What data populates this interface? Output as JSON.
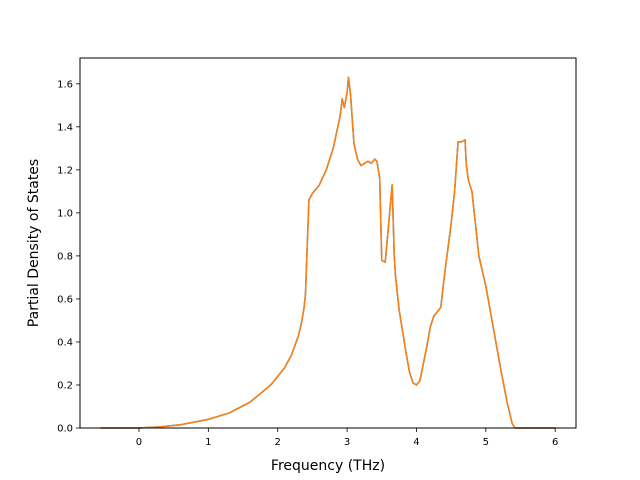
{
  "chart_data": {
    "type": "line",
    "title": "",
    "xlabel": "Frequency (THz)",
    "ylabel": "Partial Density of States",
    "xlim": [
      -0.85,
      6.3
    ],
    "ylim": [
      0.0,
      1.72
    ],
    "xticks": [
      0,
      1,
      2,
      3,
      4,
      5,
      6
    ],
    "yticks": [
      0.0,
      0.2,
      0.4,
      0.6,
      0.8,
      1.0,
      1.2,
      1.4,
      1.6
    ],
    "xtick_labels": [
      "0",
      "1",
      "2",
      "3",
      "4",
      "5",
      "6"
    ],
    "ytick_labels": [
      "0.0",
      "0.2",
      "0.4",
      "0.6",
      "0.8",
      "1.0",
      "1.2",
      "1.4",
      "1.6"
    ],
    "grid": false,
    "legend": "none",
    "series": [
      {
        "color": "#1f77b4",
        "x": [
          -0.55,
          0.0,
          0.3,
          0.6,
          1.0,
          1.3,
          1.6,
          1.9,
          2.1,
          2.2,
          2.3,
          2.35,
          2.38,
          2.4,
          2.45,
          2.5,
          2.6,
          2.7,
          2.8,
          2.9,
          2.93,
          2.96,
          3.0,
          3.02,
          3.05,
          3.1,
          3.15,
          3.2,
          3.3,
          3.35,
          3.4,
          3.43,
          3.47,
          3.5,
          3.55,
          3.6,
          3.65,
          3.68,
          3.7,
          3.75,
          3.8,
          3.85,
          3.9,
          3.95,
          4.0,
          4.05,
          4.1,
          4.15,
          4.2,
          4.25,
          4.3,
          4.35,
          4.4,
          4.5,
          4.55,
          4.6,
          4.65,
          4.7,
          4.72,
          4.75,
          4.8,
          4.85,
          4.9,
          5.0,
          5.1,
          5.2,
          5.3,
          5.38,
          5.42,
          5.5,
          6.0
        ],
        "y": [
          0.0,
          0.0,
          0.005,
          0.015,
          0.04,
          0.07,
          0.12,
          0.2,
          0.28,
          0.34,
          0.43,
          0.5,
          0.56,
          0.62,
          1.06,
          1.09,
          1.13,
          1.2,
          1.3,
          1.45,
          1.53,
          1.49,
          1.56,
          1.63,
          1.55,
          1.32,
          1.25,
          1.22,
          1.24,
          1.23,
          1.25,
          1.24,
          1.16,
          0.78,
          0.77,
          0.95,
          1.13,
          0.8,
          0.7,
          0.55,
          0.45,
          0.35,
          0.26,
          0.21,
          0.2,
          0.22,
          0.3,
          0.38,
          0.47,
          0.52,
          0.54,
          0.56,
          0.7,
          0.95,
          1.1,
          1.33,
          1.33,
          1.34,
          1.22,
          1.15,
          1.1,
          0.95,
          0.8,
          0.66,
          0.48,
          0.3,
          0.13,
          0.02,
          0.0,
          0.0,
          0.0
        ]
      },
      {
        "color": "#ff7f0e",
        "x": [
          -0.55,
          0.0,
          0.3,
          0.6,
          1.0,
          1.3,
          1.6,
          1.9,
          2.1,
          2.2,
          2.3,
          2.35,
          2.38,
          2.4,
          2.45,
          2.5,
          2.6,
          2.7,
          2.8,
          2.9,
          2.93,
          2.96,
          3.0,
          3.02,
          3.05,
          3.1,
          3.15,
          3.2,
          3.3,
          3.35,
          3.4,
          3.43,
          3.47,
          3.5,
          3.55,
          3.6,
          3.65,
          3.68,
          3.7,
          3.75,
          3.8,
          3.85,
          3.9,
          3.95,
          4.0,
          4.05,
          4.1,
          4.15,
          4.2,
          4.25,
          4.3,
          4.35,
          4.4,
          4.5,
          4.55,
          4.6,
          4.65,
          4.7,
          4.72,
          4.75,
          4.8,
          4.85,
          4.9,
          5.0,
          5.1,
          5.2,
          5.3,
          5.38,
          5.42,
          5.5,
          6.0
        ],
        "y": [
          0.0,
          0.0,
          0.005,
          0.015,
          0.04,
          0.07,
          0.12,
          0.2,
          0.28,
          0.34,
          0.43,
          0.5,
          0.56,
          0.62,
          1.06,
          1.09,
          1.13,
          1.2,
          1.3,
          1.45,
          1.53,
          1.49,
          1.56,
          1.63,
          1.55,
          1.32,
          1.25,
          1.22,
          1.24,
          1.23,
          1.25,
          1.24,
          1.16,
          0.78,
          0.77,
          0.95,
          1.13,
          0.8,
          0.7,
          0.55,
          0.45,
          0.35,
          0.26,
          0.21,
          0.2,
          0.22,
          0.3,
          0.38,
          0.47,
          0.52,
          0.54,
          0.56,
          0.7,
          0.95,
          1.1,
          1.33,
          1.33,
          1.34,
          1.22,
          1.15,
          1.1,
          0.95,
          0.8,
          0.66,
          0.48,
          0.3,
          0.13,
          0.02,
          0.0,
          0.0,
          0.0
        ]
      }
    ]
  }
}
